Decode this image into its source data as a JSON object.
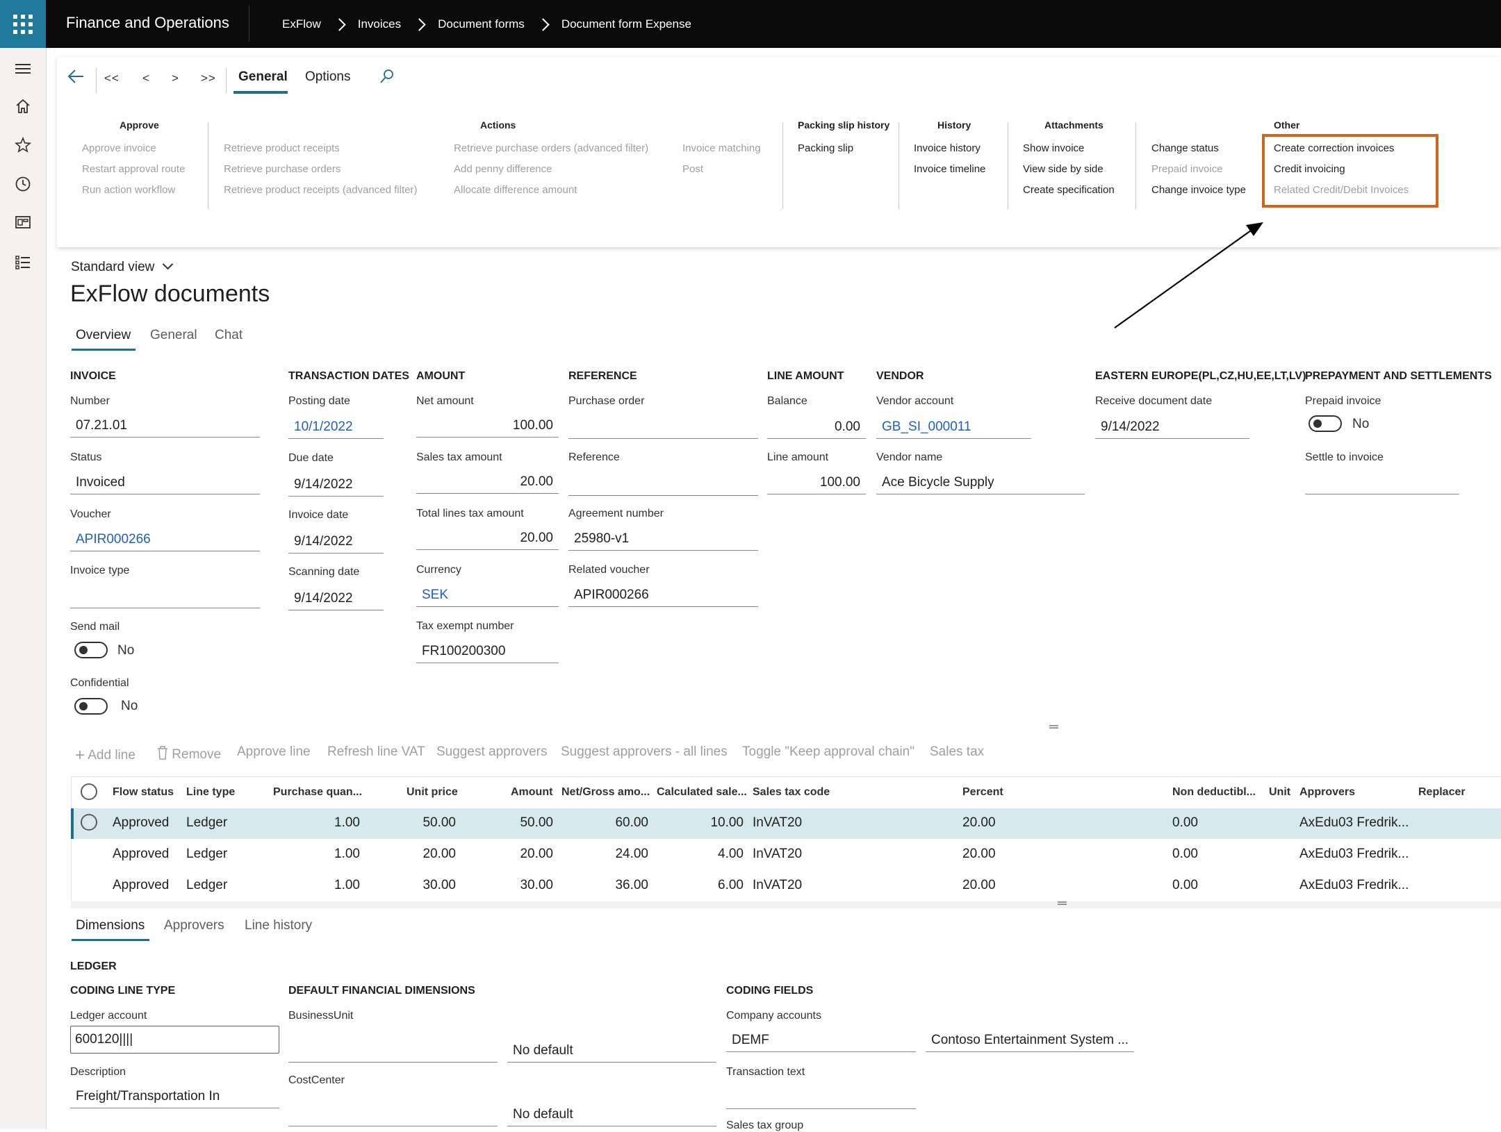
{
  "app": {
    "title": "Finance and Operations"
  },
  "breadcrumb": [
    "ExFlow",
    "Invoices",
    "Document forms",
    "Document form Expense"
  ],
  "action_pane": {
    "nav": {
      "first": "<<",
      "prev": "<",
      "next": ">",
      "last": ">>"
    },
    "tabs": [
      "General",
      "Options"
    ],
    "selected_tab": "General",
    "groups": {
      "approve": {
        "title": "Approve",
        "items": [
          "Approve invoice",
          "Restart approval route",
          "Run action workflow"
        ]
      },
      "actions": {
        "title": "Actions",
        "col1": [
          "Retrieve product receipts",
          "Retrieve purchase orders",
          "Retrieve product receipts (advanced filter)"
        ],
        "col2": [
          "Retrieve purchase orders (advanced filter)",
          "Add penny difference",
          "Allocate difference amount"
        ],
        "col3": [
          "Invoice matching",
          "Post"
        ]
      },
      "packing": {
        "title": "Packing slip history",
        "items": [
          "Packing slip"
        ]
      },
      "history": {
        "title": "History",
        "items": [
          "Invoice history",
          "Invoice timeline"
        ]
      },
      "attachments": {
        "title": "Attachments",
        "col1": [
          "Show invoice",
          "View side by side",
          "Create specification"
        ],
        "col2": [
          "Change status",
          "Prepaid invoice",
          "Change invoice type"
        ]
      },
      "other": {
        "title": "Other",
        "items": [
          "Create correction invoices",
          "Credit invoicing",
          "Related Credit/Debit Invoices"
        ]
      }
    }
  },
  "page": {
    "view": "Standard view",
    "title": "ExFlow documents",
    "tabs": [
      "Overview",
      "General",
      "Chat"
    ],
    "selected_tab": "Overview"
  },
  "invoice": {
    "heading": "INVOICE",
    "number_label": "Number",
    "number": "07.21.01",
    "status_label": "Status",
    "status": "Invoiced",
    "voucher_label": "Voucher",
    "voucher": "APIR000266",
    "invoice_type_label": "Invoice type",
    "invoice_type": "",
    "send_mail_label": "Send mail",
    "send_mail": "No",
    "confidential_label": "Confidential",
    "confidential": "No"
  },
  "transaction_dates": {
    "heading": "TRANSACTION DATES",
    "posting_label": "Posting date",
    "posting": "10/1/2022",
    "due_label": "Due date",
    "due": "9/14/2022",
    "invoice_label": "Invoice date",
    "invoice": "9/14/2022",
    "scanning_label": "Scanning date",
    "scanning": "9/14/2022"
  },
  "amount": {
    "heading": "AMOUNT",
    "net_label": "Net amount",
    "net": "100.00",
    "sales_tax_label": "Sales tax amount",
    "sales_tax": "20.00",
    "total_lines_tax_label": "Total lines tax amount",
    "total_lines_tax": "20.00",
    "currency_label": "Currency",
    "currency": "SEK",
    "tax_exempt_label": "Tax exempt number",
    "tax_exempt": "FR100200300"
  },
  "reference": {
    "heading": "REFERENCE",
    "po_label": "Purchase order",
    "po": "",
    "ref_label": "Reference",
    "ref": "",
    "agreement_label": "Agreement number",
    "agreement": "25980-v1",
    "related_voucher_label": "Related voucher",
    "related_voucher": "APIR000266"
  },
  "line_amount": {
    "heading": "LINE AMOUNT",
    "balance_label": "Balance",
    "balance": "0.00",
    "line_label": "Line amount",
    "line": "100.00"
  },
  "vendor": {
    "heading": "VENDOR",
    "account_label": "Vendor account",
    "account": "GB_SI_000011",
    "name_label": "Vendor name",
    "name": "Ace Bicycle Supply"
  },
  "eastern_europe": {
    "heading": "EASTERN EUROPE(PL,CZ,HU,EE,LT,LV)",
    "receive_label": "Receive document date",
    "receive": "9/14/2022"
  },
  "prepayment": {
    "heading": "PREPAYMENT AND SETTLEMENTS",
    "prepaid_label": "Prepaid invoice",
    "prepaid": "No",
    "settle_label": "Settle to invoice",
    "settle": ""
  },
  "lines_toolbar": [
    "Add line",
    "Remove",
    "Approve line",
    "Refresh line VAT",
    "Suggest approvers",
    "Suggest approvers - all lines",
    "Toggle \"Keep approval chain\"",
    "Sales tax"
  ],
  "lines_grid": {
    "columns": [
      "Flow status",
      "Line type",
      "Purchase quan...",
      "Unit price",
      "Amount",
      "Net/Gross amo...",
      "Calculated sale...",
      "Sales tax code",
      "Percent",
      "Non deductibl...",
      "Unit",
      "Approvers",
      "Replacer"
    ],
    "rows": [
      [
        "Approved",
        "Ledger",
        "1.00",
        "50.00",
        "50.00",
        "60.00",
        "10.00",
        "InVAT20",
        "20.00",
        "0.00",
        "",
        "AxEdu03 Fredrik...",
        ""
      ],
      [
        "Approved",
        "Ledger",
        "1.00",
        "20.00",
        "20.00",
        "24.00",
        "4.00",
        "InVAT20",
        "20.00",
        "0.00",
        "",
        "AxEdu03 Fredrik...",
        ""
      ],
      [
        "Approved",
        "Ledger",
        "1.00",
        "30.00",
        "30.00",
        "36.00",
        "6.00",
        "InVAT20",
        "20.00",
        "0.00",
        "",
        "AxEdu03 Fredrik...",
        ""
      ]
    ],
    "selected_row": 0
  },
  "line_tabs": [
    "Dimensions",
    "Approvers",
    "Line history"
  ],
  "line_tabs_selected": "Dimensions",
  "dimensions": {
    "ledger_heading": "LEDGER",
    "coding_line_type_heading": "CODING LINE TYPE",
    "ledger_account_label": "Ledger account",
    "ledger_account": "600120||||",
    "description_label": "Description",
    "description": "Freight/Transportation In",
    "default_fin_dims_heading": "DEFAULT FINANCIAL DIMENSIONS",
    "business_unit_label": "BusinessUnit",
    "business_unit_default": "No default",
    "cost_center_label": "CostCenter",
    "cost_center_default": "No default",
    "coding_fields_heading": "CODING FIELDS",
    "company_accounts_label": "Company accounts",
    "company_accounts": "DEMF",
    "company_name": "Contoso Entertainment System ...",
    "transaction_text_label": "Transaction text",
    "transaction_text": "",
    "sales_tax_group_label": "Sales tax group"
  },
  "colors": {
    "accent": "#1f6f8b",
    "highlight": "#d0651f",
    "link": "#1f5fbf",
    "topbar": "#0b0b0b",
    "selected_row": "#d7e9ee"
  }
}
